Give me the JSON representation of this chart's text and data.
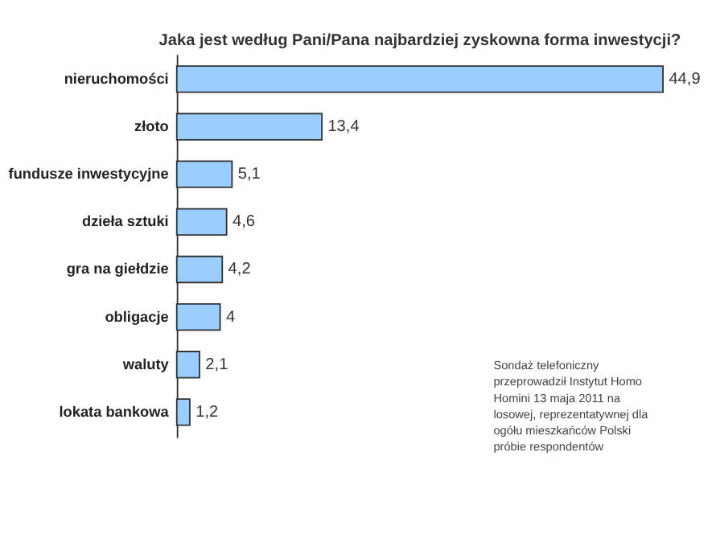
{
  "chart_data": {
    "type": "bar",
    "orientation": "horizontal",
    "title": "Jaka jest według Pani/Pana najbardziej zyskowna forma inwestycji?",
    "categories": [
      "nieruchomości",
      "złoto",
      "fundusze inwestycyjne",
      "dzieła sztuki",
      "gra na giełdzie",
      "obligacje",
      "waluty",
      "lokata bankowa"
    ],
    "values": [
      44.9,
      13.4,
      5.1,
      4.6,
      4.2,
      4,
      2.1,
      1.2
    ],
    "value_labels": [
      "44,9",
      "13,4",
      "5,1",
      "4,6",
      "4,2",
      "4",
      "2,1",
      "1,2"
    ],
    "color": "#99ccff",
    "annotations": [
      "Sondaż telefoniczny przeprowadził Instytut Homo Homini 13 maja 2011 na losowej, reprezentatywnej dla ogółu mieszkańców Polski próbie respondentów"
    ]
  }
}
